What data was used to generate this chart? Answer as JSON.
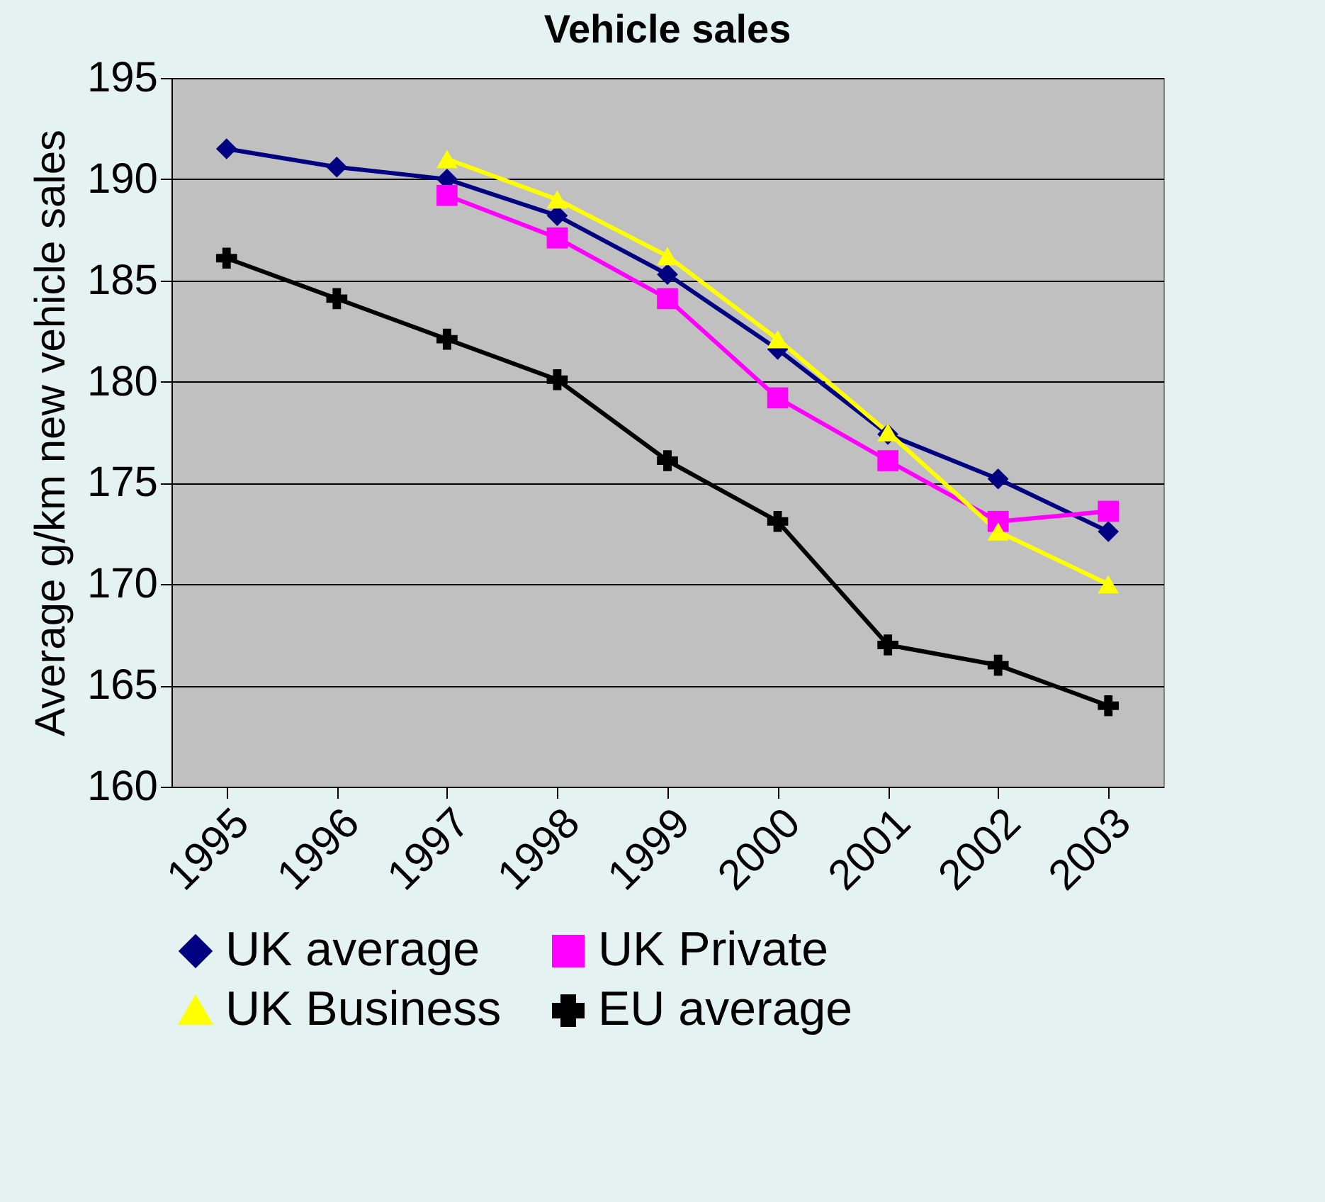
{
  "chart_data": {
    "type": "line",
    "title": "Vehicle sales",
    "ylabel": "Average g/km new vehicle sales",
    "categories": [
      "1995",
      "1996",
      "1997",
      "1998",
      "1999",
      "2000",
      "2001",
      "2002",
      "2003"
    ],
    "series": [
      {
        "name": "UK average",
        "color": "#000080",
        "marker": "diamond",
        "values": [
          191.5,
          190.6,
          190,
          188.2,
          185.3,
          181.6,
          177.4,
          175.2,
          172.6
        ]
      },
      {
        "name": "UK Private",
        "color": "#ff00ff",
        "marker": "square",
        "values": [
          null,
          null,
          189.2,
          187.1,
          184.1,
          179.2,
          176.1,
          173.1,
          173.6
        ]
      },
      {
        "name": "UK Business",
        "color": "#ffff00",
        "marker": "triangle",
        "values": [
          null,
          null,
          191,
          189,
          186.2,
          182.1,
          177.5,
          172.6,
          170
        ]
      },
      {
        "name": "EU average",
        "color": "#000000",
        "marker": "cross",
        "values": [
          186.1,
          184.1,
          182.1,
          180.1,
          176.1,
          173.1,
          167,
          166,
          164
        ]
      }
    ],
    "ylim": [
      160,
      195
    ],
    "yticks": [
      160,
      165,
      170,
      175,
      180,
      185,
      190,
      195
    ],
    "grid": "y",
    "legend": "bottom"
  }
}
